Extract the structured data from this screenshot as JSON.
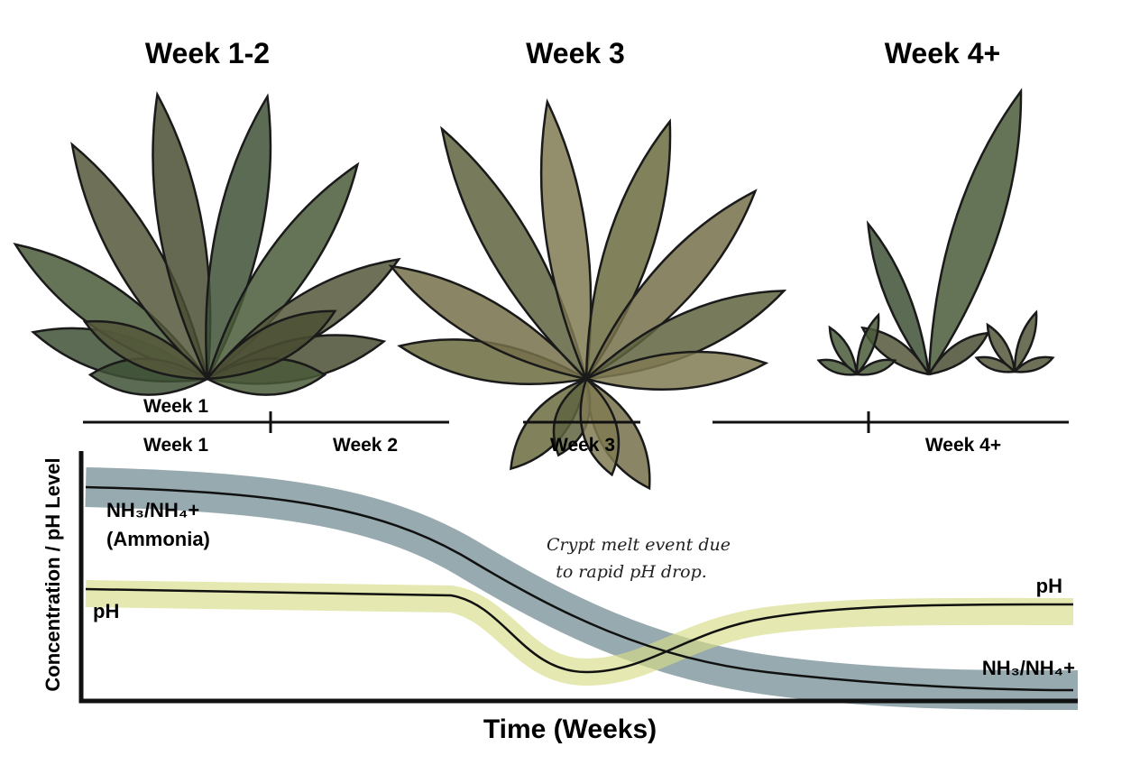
{
  "stages": [
    "Week 1-2",
    "Week 3",
    "Week 4+"
  ],
  "timeline": {
    "above_label": "Week 1",
    "labels": [
      "Week 1",
      "Week 2",
      "Week 3",
      "Week 4+"
    ]
  },
  "graph": {
    "y_axis_label": "Concentration / pH Level",
    "x_axis_label": "Time (Weeks)",
    "ammonia_label": "NH₃/NH₄+",
    "ammonia_sublabel": "(Ammonia)",
    "ph_label_left": "pH",
    "ph_label_right": "pH",
    "ammonia_label_right": "NH₃/NH₄+",
    "annotation": [
      "Crypt melt event due",
      "to rapid pH drop."
    ]
  }
}
